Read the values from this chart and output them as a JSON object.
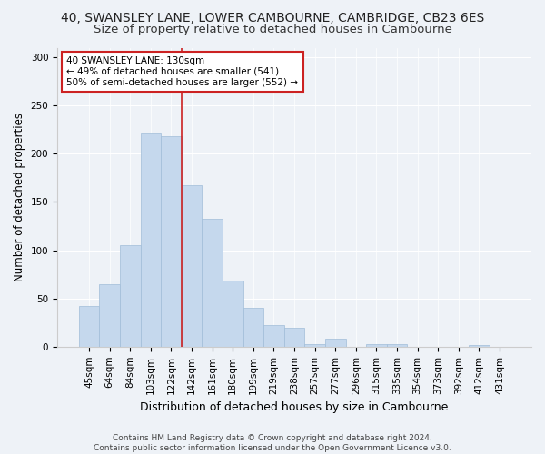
{
  "title": "40, SWANSLEY LANE, LOWER CAMBOURNE, CAMBRIDGE, CB23 6ES",
  "subtitle": "Size of property relative to detached houses in Cambourne",
  "xlabel": "Distribution of detached houses by size in Cambourne",
  "ylabel": "Number of detached properties",
  "categories": [
    "45sqm",
    "64sqm",
    "84sqm",
    "103sqm",
    "122sqm",
    "142sqm",
    "161sqm",
    "180sqm",
    "199sqm",
    "219sqm",
    "238sqm",
    "257sqm",
    "277sqm",
    "296sqm",
    "315sqm",
    "335sqm",
    "354sqm",
    "373sqm",
    "392sqm",
    "412sqm",
    "431sqm"
  ],
  "values": [
    42,
    65,
    105,
    221,
    218,
    167,
    133,
    69,
    40,
    22,
    20,
    3,
    8,
    0,
    3,
    3,
    0,
    0,
    0,
    2,
    0
  ],
  "bar_color": "#c5d8ed",
  "bar_edgecolor": "#a0bdd8",
  "vline_x": 4.5,
  "vline_color": "#cc2222",
  "annotation_text": "40 SWANSLEY LANE: 130sqm\n← 49% of detached houses are smaller (541)\n50% of semi-detached houses are larger (552) →",
  "annotation_box_color": "white",
  "annotation_box_edgecolor": "#cc2222",
  "ylim": [
    0,
    310
  ],
  "yticks": [
    0,
    50,
    100,
    150,
    200,
    250,
    300
  ],
  "background_color": "#eef2f7",
  "footer_text": "Contains HM Land Registry data © Crown copyright and database right 2024.\nContains public sector information licensed under the Open Government Licence v3.0.",
  "title_fontsize": 10,
  "subtitle_fontsize": 9.5,
  "xlabel_fontsize": 9,
  "ylabel_fontsize": 8.5,
  "tick_fontsize": 7.5,
  "annotation_fontsize": 7.5,
  "footer_fontsize": 6.5
}
